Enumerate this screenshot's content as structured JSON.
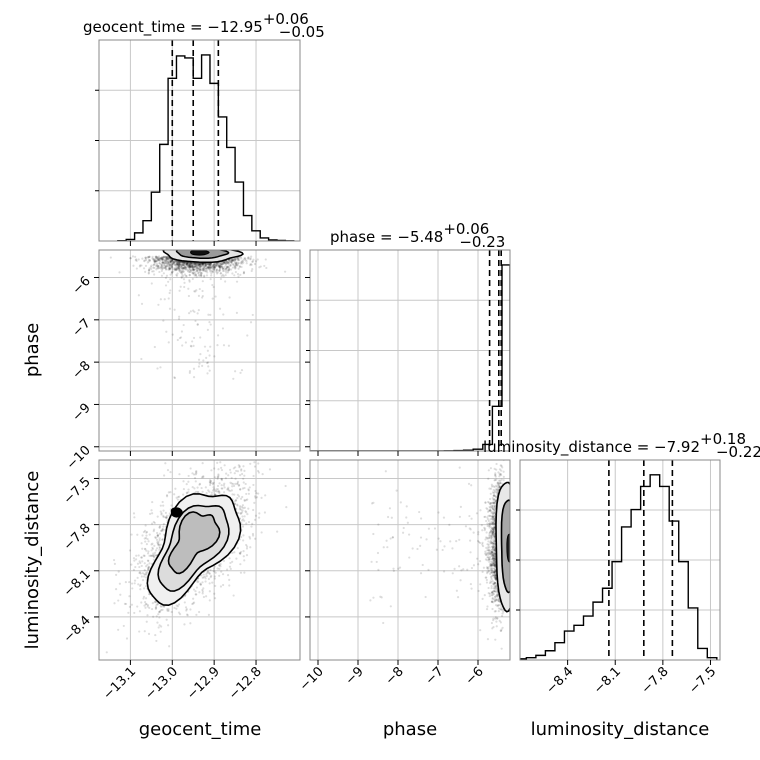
{
  "chart_data": {
    "type": "corner",
    "grid": true,
    "parameters": [
      {
        "name": "geocent_time",
        "xlim": [
          -13.175,
          -12.695
        ],
        "ticks": [
          -13.1,
          -13.0,
          -12.9,
          -12.8
        ],
        "tick_labels": [
          "−13.1",
          "−13.0",
          "−12.9",
          "−12.8"
        ],
        "title": {
          "label": "geocent_time = ",
          "median": "−12.95",
          "plus": "+0.06",
          "minus": "−0.05"
        },
        "quantiles": [
          -13.0,
          -12.95,
          -12.89
        ],
        "histogram": {
          "bin_edges": [
            -13.13,
            -13.11,
            -13.09,
            -13.07,
            -13.05,
            -13.03,
            -13.01,
            -12.99,
            -12.97,
            -12.95,
            -12.93,
            -12.91,
            -12.89,
            -12.87,
            -12.85,
            -12.83,
            -12.81,
            -12.79,
            -12.77,
            -12.75,
            -12.73,
            -12.71
          ],
          "values": [
            0.3,
            1.5,
            8,
            20,
            48,
            95,
            160,
            182,
            180,
            160,
            183,
            155,
            122,
            92,
            58,
            25,
            10,
            3,
            1,
            0.5,
            0.2
          ]
        }
      },
      {
        "name": "phase",
        "xlim": [
          -10.2,
          -5.2
        ],
        "ticks": [
          -10,
          -9,
          -8,
          -7,
          -6
        ],
        "tick_labels": [
          "−10",
          "−9",
          "−8",
          "−7",
          "−6"
        ],
        "title": {
          "label": "phase = ",
          "median": "−5.48",
          "plus": "+0.06",
          "minus": "−0.23"
        },
        "quantiles": [
          -5.71,
          -5.48,
          -5.42
        ],
        "histogram": {
          "bin_edges": [
            -10.2,
            -9.96,
            -9.72,
            -9.48,
            -9.24,
            -9.0,
            -8.76,
            -8.52,
            -8.28,
            -8.04,
            -7.8,
            -7.56,
            -7.32,
            -7.08,
            -6.84,
            -6.6,
            -6.36,
            -6.12,
            -5.88,
            -5.64,
            -5.4,
            -5.2
          ],
          "values": [
            0,
            0,
            0,
            0,
            0,
            0,
            0,
            0,
            0,
            0,
            0,
            0,
            0,
            0,
            1,
            2,
            4,
            10,
            35,
            240,
            1000
          ]
        }
      },
      {
        "name": "luminosity_distance",
        "xlim": [
          -8.7,
          -7.44
        ],
        "ticks": [
          -8.4,
          -8.1,
          -7.8,
          -7.5
        ],
        "tick_labels": [
          "−8.4",
          "−8.1",
          "−7.8",
          "−7.5"
        ],
        "title": {
          "label": "luminosity_distance = ",
          "median": "−7.92",
          "plus": "+0.18",
          "minus": "−0.22"
        },
        "quantiles": [
          -8.14,
          -7.92,
          -7.74
        ],
        "histogram": {
          "bin_edges": [
            -8.72,
            -8.66,
            -8.6,
            -8.54,
            -8.48,
            -8.42,
            -8.36,
            -8.3,
            -8.24,
            -8.18,
            -8.12,
            -8.06,
            -8.0,
            -7.94,
            -7.88,
            -7.82,
            -7.76,
            -7.7,
            -7.64,
            -7.58,
            -7.52,
            -7.46
          ],
          "values": [
            1,
            2,
            4,
            8,
            15,
            25,
            30,
            38,
            50,
            62,
            85,
            115,
            130,
            150,
            160,
            150,
            120,
            85,
            45,
            10,
            2
          ]
        }
      }
    ],
    "pairs": [
      {
        "x": "geocent_time",
        "y": "phase",
        "density_peak": [
          -12.93,
          -5.5
        ],
        "axis_display_range": {
          "y": [
            -10.1,
            -5.35
          ]
        }
      },
      {
        "x": "geocent_time",
        "y": "luminosity_distance",
        "density_peak": [
          -12.99,
          -7.72
        ],
        "axis_display_range": {
          "y": [
            -8.68,
            -7.38
          ]
        }
      },
      {
        "x": "phase",
        "y": "luminosity_distance",
        "density_peak": [
          -5.3,
          -7.95
        ],
        "axis_display_range": {
          "y": [
            -8.68,
            -7.38
          ]
        }
      }
    ],
    "y_axis_ticks": {
      "phase": {
        "ticks": [
          -6,
          -7,
          -8,
          -9,
          -10
        ],
        "tick_labels": [
          "−6",
          "−7",
          "−8",
          "−9",
          "−10"
        ],
        "ylim": [
          -10.1,
          -5.35
        ]
      },
      "luminosity_distance": {
        "ticks": [
          -7.5,
          -7.8,
          -8.1,
          -8.4
        ],
        "tick_labels": [
          "−7.5",
          "−7.8",
          "−8.1",
          "−8.4"
        ],
        "ylim": [
          -8.68,
          -7.38
        ]
      }
    },
    "xlabels": [
      "geocent_time",
      "phase",
      "luminosity_distance"
    ],
    "ylabels": [
      "phase",
      "luminosity_distance"
    ]
  }
}
